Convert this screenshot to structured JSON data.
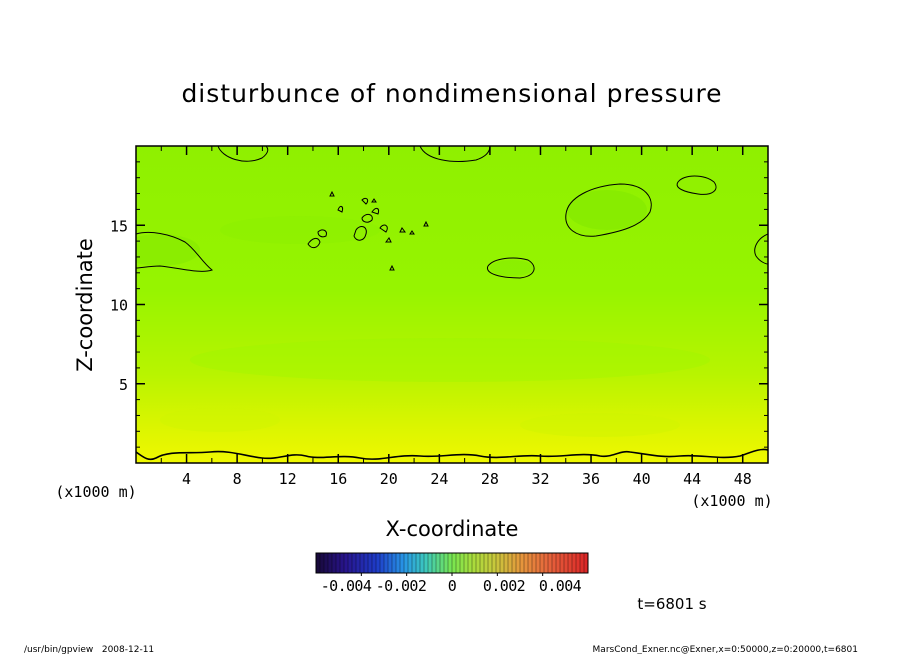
{
  "chart_data": {
    "type": "heatmap",
    "title": "disturbunce of nondimensional pressure",
    "xlabel": "X-coordinate",
    "ylabel": "Z-coordinate",
    "x_unit_left": "(x1000 m)",
    "x_unit_right": "(x1000 m)",
    "xlim": [
      0,
      50
    ],
    "ylim": [
      0,
      20
    ],
    "x_ticks": [
      "4",
      "8",
      "12",
      "16",
      "20",
      "24",
      "28",
      "32",
      "36",
      "40",
      "44",
      "48"
    ],
    "y_ticks": [
      "5",
      "10",
      "15"
    ],
    "colorbar": {
      "ticks": [
        "-0.004",
        "-0.002",
        "0",
        "0.002",
        "0.004"
      ],
      "range": [
        -0.006,
        0.006
      ]
    },
    "grid": false,
    "time_label": "t=6801 s",
    "footer_left": "/usr/bin/gpview   2008-12-11",
    "footer_right": "MarsCond_Exner.nc@Exner,x=0:50000,z=0:20000,t=6801",
    "colors": {
      "upper_green": "#8ef200",
      "mid_green": "#99f600",
      "lower_yellow": "#daf600",
      "bottom_yellow": "#eef800",
      "contour": "#000000"
    }
  }
}
